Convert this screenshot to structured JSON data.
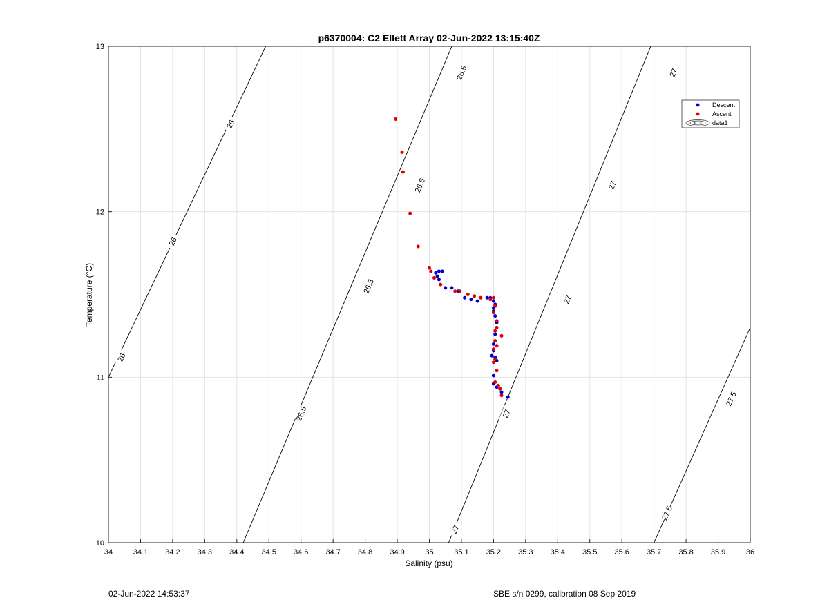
{
  "footer": {
    "timestamp": "02-Jun-2022 14:53:37",
    "calibration": "SBE s/n 0299, calibration 08 Sep 2019"
  },
  "chart_data": {
    "type": "scatter",
    "title": "p6370004: C2 Ellett Array 02-Jun-2022 13:15:40Z",
    "xlabel": "Salinity (psu)",
    "ylabel": "Temperature (°C)",
    "xlim": [
      34,
      36
    ],
    "ylim": [
      10,
      13
    ],
    "x_ticks": [
      "34",
      "34.1",
      "34.2",
      "34.3",
      "34.4",
      "34.5",
      "34.6",
      "34.7",
      "34.8",
      "34.9",
      "35",
      "35.1",
      "35.2",
      "35.3",
      "35.4",
      "35.5",
      "35.6",
      "35.7",
      "35.8",
      "35.9",
      "36"
    ],
    "y_ticks": [
      "10",
      "11",
      "12",
      "13"
    ],
    "grid": true,
    "legend": {
      "position": "top-right",
      "entries": [
        "Descent",
        "Ascent",
        "data1"
      ]
    },
    "colors": {
      "descent": "#0000cc",
      "ascent": "#dd0000",
      "contour": "#000000",
      "grid": "#e3e3e3"
    },
    "series": [
      {
        "name": "Descent",
        "color": "#0000cc",
        "points": [
          [
            35.02,
            11.63
          ],
          [
            35.03,
            11.64
          ],
          [
            35.04,
            11.64
          ],
          [
            35.025,
            11.61
          ],
          [
            35.03,
            11.59
          ],
          [
            35.05,
            11.54
          ],
          [
            35.07,
            11.54
          ],
          [
            35.09,
            11.52
          ],
          [
            35.11,
            11.48
          ],
          [
            35.13,
            11.47
          ],
          [
            35.15,
            11.46
          ],
          [
            35.18,
            11.48
          ],
          [
            35.19,
            11.48
          ],
          [
            35.2,
            11.46
          ],
          [
            35.205,
            11.44
          ],
          [
            35.2,
            11.42
          ],
          [
            35.2,
            11.4
          ],
          [
            35.205,
            11.37
          ],
          [
            35.21,
            11.33
          ],
          [
            35.205,
            11.26
          ],
          [
            35.2,
            11.2
          ],
          [
            35.2,
            11.16
          ],
          [
            35.195,
            11.13
          ],
          [
            35.205,
            11.12
          ],
          [
            35.21,
            11.1
          ],
          [
            35.2,
            11.01
          ],
          [
            35.2,
            10.96
          ],
          [
            35.21,
            10.94
          ],
          [
            35.22,
            10.93
          ],
          [
            35.225,
            10.91
          ],
          [
            35.245,
            10.88
          ]
        ]
      },
      {
        "name": "Ascent",
        "color": "#dd0000",
        "points": [
          [
            34.895,
            12.56
          ],
          [
            34.915,
            12.36
          ],
          [
            34.918,
            12.24
          ],
          [
            34.94,
            11.99
          ],
          [
            34.965,
            11.79
          ],
          [
            35.0,
            11.66
          ],
          [
            35.005,
            11.64
          ],
          [
            35.015,
            11.6
          ],
          [
            35.035,
            11.56
          ],
          [
            35.08,
            11.52
          ],
          [
            35.095,
            11.52
          ],
          [
            35.12,
            11.5
          ],
          [
            35.14,
            11.49
          ],
          [
            35.16,
            11.48
          ],
          [
            35.19,
            11.47
          ],
          [
            35.2,
            11.48
          ],
          [
            35.205,
            11.43
          ],
          [
            35.2,
            11.39
          ],
          [
            35.21,
            11.34
          ],
          [
            35.21,
            11.3
          ],
          [
            35.205,
            11.28
          ],
          [
            35.225,
            11.25
          ],
          [
            35.205,
            11.22
          ],
          [
            35.21,
            11.19
          ],
          [
            35.2,
            11.17
          ],
          [
            35.205,
            11.11
          ],
          [
            35.2,
            11.09
          ],
          [
            35.21,
            11.04
          ],
          [
            35.205,
            10.97
          ],
          [
            35.215,
            10.95
          ],
          [
            35.22,
            10.93
          ],
          [
            35.225,
            10.89
          ]
        ]
      }
    ],
    "density_contours": [
      {
        "level": "26",
        "points": [
          [
            34.0,
            11.0
          ],
          [
            34.49,
            13.0
          ]
        ],
        "labels": [
          [
            34.04,
            11.12
          ],
          [
            34.2,
            11.82
          ],
          [
            34.38,
            12.53
          ]
        ]
      },
      {
        "level": "26.5",
        "points": [
          [
            34.42,
            10.0
          ],
          [
            35.07,
            13.0
          ]
        ],
        "labels": [
          [
            34.6,
            10.78
          ],
          [
            34.81,
            11.55
          ],
          [
            34.97,
            12.16
          ],
          [
            35.1,
            12.84
          ]
        ]
      },
      {
        "level": "27",
        "points": [
          [
            35.06,
            10.0
          ],
          [
            35.69,
            13.0
          ]
        ],
        "labels": [
          [
            35.08,
            10.08
          ],
          [
            35.24,
            10.78
          ],
          [
            35.43,
            11.47
          ],
          [
            35.57,
            12.16
          ],
          [
            35.76,
            12.84
          ]
        ]
      },
      {
        "level": "27.5",
        "points": [
          [
            35.7,
            10.0
          ],
          [
            36.0,
            11.3
          ]
        ],
        "labels": [
          [
            35.74,
            10.18
          ],
          [
            35.94,
            10.87
          ]
        ]
      }
    ]
  }
}
